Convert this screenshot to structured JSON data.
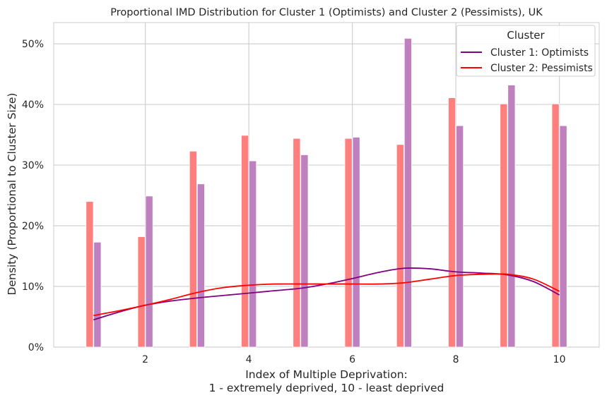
{
  "chart_data": {
    "type": "bar",
    "title": "Proportional IMD Distribution for Cluster 1 (Optimists) and Cluster 2 (Pessimists), UK",
    "xlabel_line1": "Index of Multiple Deprivation:",
    "xlabel_line2": "1 - extremely deprived, 10 - least deprived",
    "ylabel": "Density (Proportional to Cluster Size)",
    "xlim": [
      0.23,
      10.77
    ],
    "ylim": [
      0,
      0.535
    ],
    "x_ticks": [
      2,
      4,
      6,
      8,
      10
    ],
    "x_tick_labels": [
      "2",
      "4",
      "6",
      "8",
      "10"
    ],
    "y_ticks": [
      0,
      0.1,
      0.2,
      0.3,
      0.4,
      0.5
    ],
    "y_tick_labels": [
      "0%",
      "10%",
      "20%",
      "30%",
      "40%",
      "50%"
    ],
    "grid": true,
    "categories": [
      1,
      2,
      3,
      4,
      5,
      6,
      7,
      8,
      9,
      10
    ],
    "series": [
      {
        "name": "Cluster 1: Optimists",
        "color": "#800080",
        "bar_color": "#bf80bf",
        "values": [
          0.173,
          0.249,
          0.269,
          0.307,
          0.317,
          0.346,
          0.509,
          0.365,
          0.432,
          0.365
        ],
        "kde": {
          "x": [
            1,
            1.5,
            2,
            2.5,
            3,
            3.5,
            4,
            4.5,
            5,
            5.5,
            6,
            6.5,
            7,
            7.5,
            8,
            8.5,
            9,
            9.5,
            10
          ],
          "y": [
            0.045,
            0.058,
            0.069,
            0.076,
            0.081,
            0.085,
            0.089,
            0.093,
            0.097,
            0.104,
            0.113,
            0.123,
            0.13,
            0.129,
            0.124,
            0.122,
            0.119,
            0.108,
            0.086
          ]
        }
      },
      {
        "name": "Cluster 2: Pessimists",
        "color": "#ff0000",
        "bar_color": "#ff7f7f",
        "values": [
          0.24,
          0.182,
          0.323,
          0.349,
          0.344,
          0.344,
          0.334,
          0.411,
          0.401,
          0.401
        ],
        "kde": {
          "x": [
            1,
            1.5,
            2,
            2.5,
            3,
            3.5,
            4,
            4.5,
            5,
            5.5,
            6,
            6.5,
            7,
            7.5,
            8,
            8.5,
            9,
            9.5,
            10
          ],
          "y": [
            0.052,
            0.06,
            0.069,
            0.079,
            0.09,
            0.098,
            0.102,
            0.104,
            0.104,
            0.104,
            0.104,
            0.104,
            0.106,
            0.112,
            0.118,
            0.12,
            0.12,
            0.112,
            0.092
          ]
        }
      }
    ],
    "legend": {
      "title": "Cluster",
      "position": "top-right",
      "entries": [
        "Cluster 1: Optimists",
        "Cluster 2: Pessimists"
      ]
    }
  }
}
